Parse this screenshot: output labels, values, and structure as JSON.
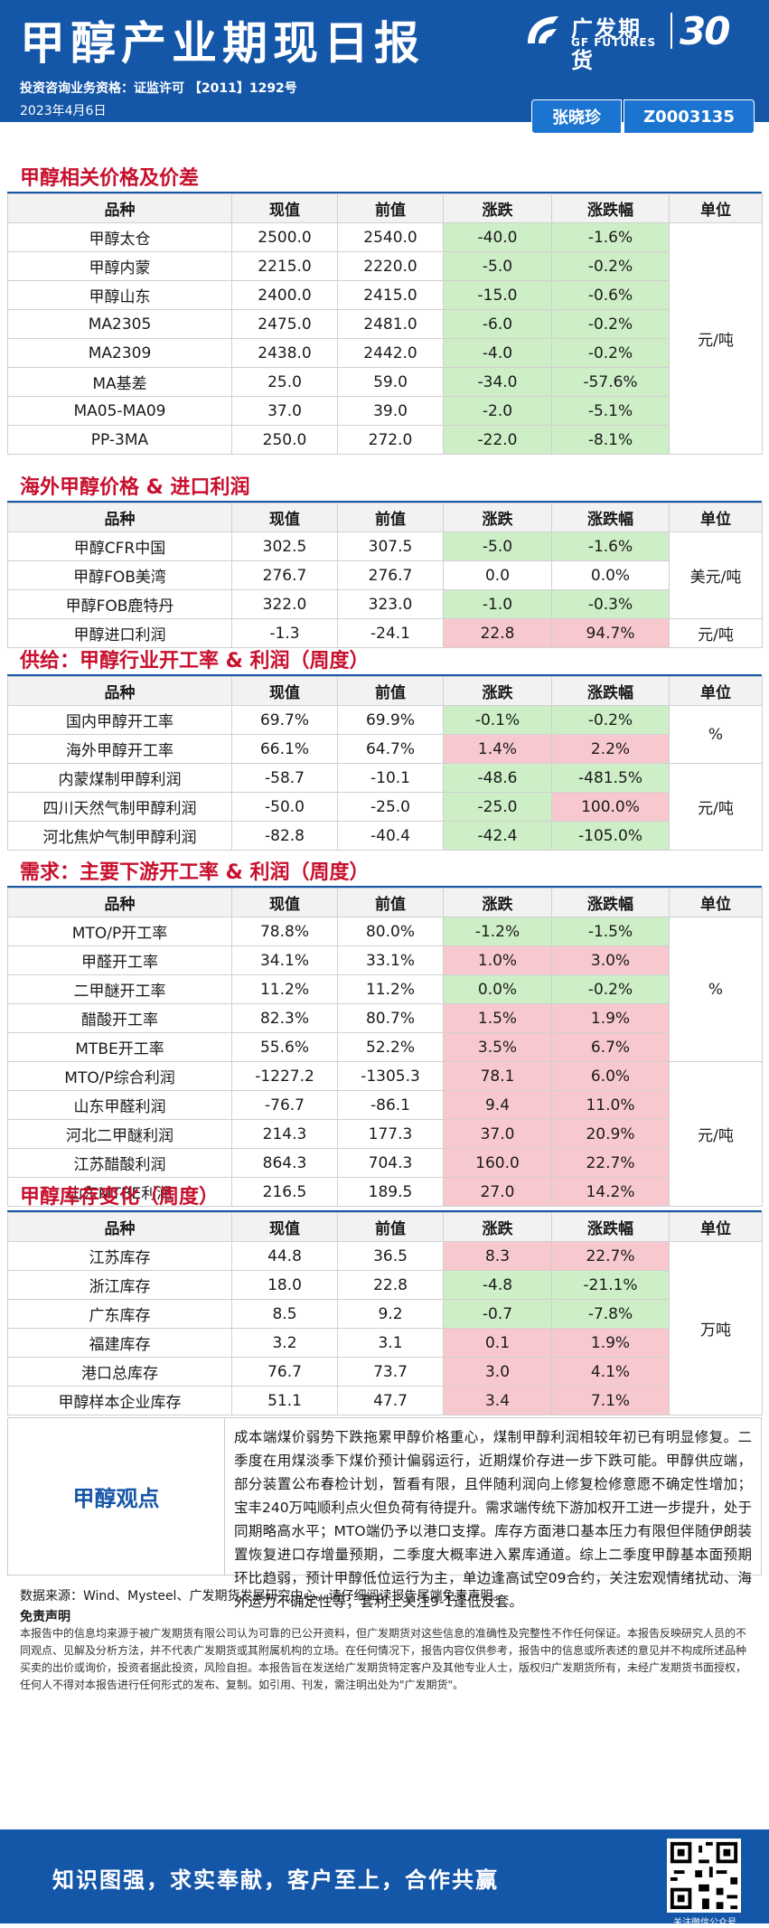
{
  "header": {
    "title": "甲醇产业期现日报",
    "cert": "投资咨询业务资格：证监许可 【2011】1292号",
    "date": "2023年4月6日",
    "logo_cn": "广发期货",
    "logo_en": "GF FUTURES",
    "anniversary": "30",
    "analyst": "张晓珍",
    "analyst_id": "Z0003135"
  },
  "sections": [
    {
      "title": "甲醇相关价格及价差",
      "headers": [
        "品种",
        "现值",
        "前值",
        "涨跌",
        "涨跌幅",
        "单位"
      ],
      "rows": [
        [
          "甲醇太仓",
          "2500.0",
          "2540.0",
          "-40.0",
          "-1.6%"
        ],
        [
          "甲醇内蒙",
          "2215.0",
          "2220.0",
          "-5.0",
          "-0.2%"
        ],
        [
          "甲醇山东",
          "2400.0",
          "2415.0",
          "-15.0",
          "-0.6%"
        ],
        [
          "MA2305",
          "2475.0",
          "2481.0",
          "-6.0",
          "-0.2%"
        ],
        [
          "MA2309",
          "2438.0",
          "2442.0",
          "-4.0",
          "-0.2%"
        ],
        [
          "MA基差",
          "25.0",
          "59.0",
          "-34.0",
          "-57.6%"
        ],
        [
          "MA05-MA09",
          "37.0",
          "39.0",
          "-2.0",
          "-5.1%"
        ],
        [
          "PP-3MA",
          "250.0",
          "272.0",
          "-22.0",
          "-8.1%"
        ]
      ],
      "units": [
        {
          "label": "元/吨",
          "span": 8
        }
      ],
      "colors": [
        [
          "dn",
          "dn"
        ],
        [
          "dn",
          "dn"
        ],
        [
          "dn",
          "dn"
        ],
        [
          "dn",
          "dn"
        ],
        [
          "dn",
          "dn"
        ],
        [
          "dn",
          "dn"
        ],
        [
          "dn",
          "dn"
        ],
        [
          "dn",
          "dn"
        ]
      ]
    },
    {
      "title": "海外甲醇价格 & 进口利润",
      "headers": [
        "品种",
        "现值",
        "前值",
        "涨跌",
        "涨跌幅",
        "单位"
      ],
      "rows": [
        [
          "甲醇CFR中国",
          "302.5",
          "307.5",
          "-5.0",
          "-1.6%"
        ],
        [
          "甲醇FOB美湾",
          "276.7",
          "276.7",
          "0.0",
          "0.0%"
        ],
        [
          "甲醇FOB鹿特丹",
          "322.0",
          "323.0",
          "-1.0",
          "-0.3%"
        ],
        [
          "甲醇进口利润",
          "-1.3",
          "-24.1",
          "22.8",
          "94.7%"
        ]
      ],
      "units": [
        {
          "label": "美元/吨",
          "span": 3
        },
        {
          "label": "元/吨",
          "span": 1
        }
      ],
      "colors": [
        [
          "dn",
          "dn"
        ],
        [
          "",
          ""
        ],
        [
          "dn",
          "dn"
        ],
        [
          "up",
          "up"
        ]
      ]
    },
    {
      "title": "供给：甲醇行业开工率 & 利润（周度）",
      "headers": [
        "品种",
        "现值",
        "前值",
        "涨跌",
        "涨跌幅",
        "单位"
      ],
      "rows": [
        [
          "国内甲醇开工率",
          "69.7%",
          "69.9%",
          "-0.1%",
          "-0.2%"
        ],
        [
          "海外甲醇开工率",
          "66.1%",
          "64.7%",
          "1.4%",
          "2.2%"
        ],
        [
          "内蒙煤制甲醇利润",
          "-58.7",
          "-10.1",
          "-48.6",
          "-481.5%"
        ],
        [
          "四川天然气制甲醇利润",
          "-50.0",
          "-25.0",
          "-25.0",
          "100.0%"
        ],
        [
          "河北焦炉气制甲醇利润",
          "-82.8",
          "-40.4",
          "-42.4",
          "-105.0%"
        ]
      ],
      "units": [
        {
          "label": "%",
          "span": 2
        },
        {
          "label": "元/吨",
          "span": 3
        }
      ],
      "colors": [
        [
          "dn",
          "dn"
        ],
        [
          "up",
          "up"
        ],
        [
          "dn",
          "dn"
        ],
        [
          "dn",
          "up"
        ],
        [
          "dn",
          "dn"
        ]
      ]
    },
    {
      "title": "需求：主要下游开工率 & 利润（周度）",
      "headers": [
        "品种",
        "现值",
        "前值",
        "涨跌",
        "涨跌幅",
        "单位"
      ],
      "rows": [
        [
          "MTO/P开工率",
          "78.8%",
          "80.0%",
          "-1.2%",
          "-1.5%"
        ],
        [
          "甲醛开工率",
          "34.1%",
          "33.1%",
          "1.0%",
          "3.0%"
        ],
        [
          "二甲醚开工率",
          "11.2%",
          "11.2%",
          "0.0%",
          "-0.2%"
        ],
        [
          "醋酸开工率",
          "82.3%",
          "80.7%",
          "1.5%",
          "1.9%"
        ],
        [
          "MTBE开工率",
          "55.6%",
          "52.2%",
          "3.5%",
          "6.7%"
        ],
        [
          "MTO/P综合利润",
          "-1227.2",
          "-1305.3",
          "78.1",
          "6.0%"
        ],
        [
          "山东甲醛利润",
          "-76.7",
          "-86.1",
          "9.4",
          "11.0%"
        ],
        [
          "河北二甲醚利润",
          "214.3",
          "177.3",
          "37.0",
          "20.9%"
        ],
        [
          "江苏醋酸利润",
          "864.3",
          "704.3",
          "160.0",
          "22.7%"
        ],
        [
          "山东MTBE利润",
          "216.5",
          "189.5",
          "27.0",
          "14.2%"
        ]
      ],
      "units": [
        {
          "label": "%",
          "span": 5
        },
        {
          "label": "元/吨",
          "span": 5
        }
      ],
      "colors": [
        [
          "dn",
          "dn"
        ],
        [
          "up",
          "up"
        ],
        [
          "dn",
          "dn"
        ],
        [
          "up",
          "up"
        ],
        [
          "up",
          "up"
        ],
        [
          "up",
          "up"
        ],
        [
          "up",
          "up"
        ],
        [
          "up",
          "up"
        ],
        [
          "up",
          "up"
        ],
        [
          "up",
          "up"
        ]
      ]
    },
    {
      "title": "甲醇库存变化（周度）",
      "headers": [
        "品种",
        "现值",
        "前值",
        "涨跌",
        "涨跌幅",
        "单位"
      ],
      "rows": [
        [
          "江苏库存",
          "44.8",
          "36.5",
          "8.3",
          "22.7%"
        ],
        [
          "浙江库存",
          "18.0",
          "22.8",
          "-4.8",
          "-21.1%"
        ],
        [
          "广东库存",
          "8.5",
          "9.2",
          "-0.7",
          "-7.8%"
        ],
        [
          "福建库存",
          "3.2",
          "3.1",
          "0.1",
          "1.9%"
        ],
        [
          "港口总库存",
          "76.7",
          "73.7",
          "3.0",
          "4.1%"
        ],
        [
          "甲醇样本企业库存",
          "51.1",
          "47.7",
          "3.4",
          "7.1%"
        ]
      ],
      "units": [
        {
          "label": "万吨",
          "span": 6
        }
      ],
      "colors": [
        [
          "up",
          "up"
        ],
        [
          "dn",
          "dn"
        ],
        [
          "dn",
          "dn"
        ],
        [
          "up",
          "up"
        ],
        [
          "up",
          "up"
        ],
        [
          "up",
          "up"
        ]
      ]
    }
  ],
  "opinion": {
    "label": "甲醇观点",
    "text": "成本端煤价弱势下跌拖累甲醇价格重心，煤制甲醇利润相较年初已有明显修复。二季度在用煤淡季下煤价预计偏弱运行，近期煤价存进一步下跌可能。甲醇供应端，部分装置公布春检计划，暂看有限，且伴随利润向上修复检修意愿不确定性增加；宝丰240万吨顺利点火但负荷有待提升。需求端传统下游加权开工进一步提升，处于同期略高水平；MTO端仍予以港口支撑。库存方面港口基本压力有限但伴随伊朗装置恢复进口存增量预期，二季度大概率进入累库通道。综上二季度甲醇基本面预期环比趋弱，预计甲醇低位运行为主，单边逢高试空09合约，关注宏观情绪扰动、海外运力不确定性等；套利上关注9-1逢低反套。"
  },
  "source": "数据来源：Wind、Mysteel、广发期货发展研究中心。请仔细阅读报告尾端免责声明。",
  "disclaimer_title": "免责声明",
  "disclaimer": "本报告中的信息均来源于被广发期货有限公司认为可靠的已公开资料，但广发期货对这些信息的准确性及完整性不作任何保证。本报告反映研究人员的不同观点、见解及分析方法，并不代表广发期货或其附属机构的立场。在任何情况下，报告内容仅供参考，报告中的信息或所表述的意见并不构成所述品种买卖的出价或询价，投资者据此投资，风险自担。本报告旨在发送给广发期货特定客户及其他专业人士，版权归广发期货所有，未经广发期货书面授权，任何人不得对本报告进行任何形式的发布、复制。如引用、刊发，需注明出处为\"广发期货\"。",
  "footer": {
    "slogan": "知识图强，求实奉献，客户至上，合作共赢",
    "qr_caption": "关注微信公众号"
  }
}
